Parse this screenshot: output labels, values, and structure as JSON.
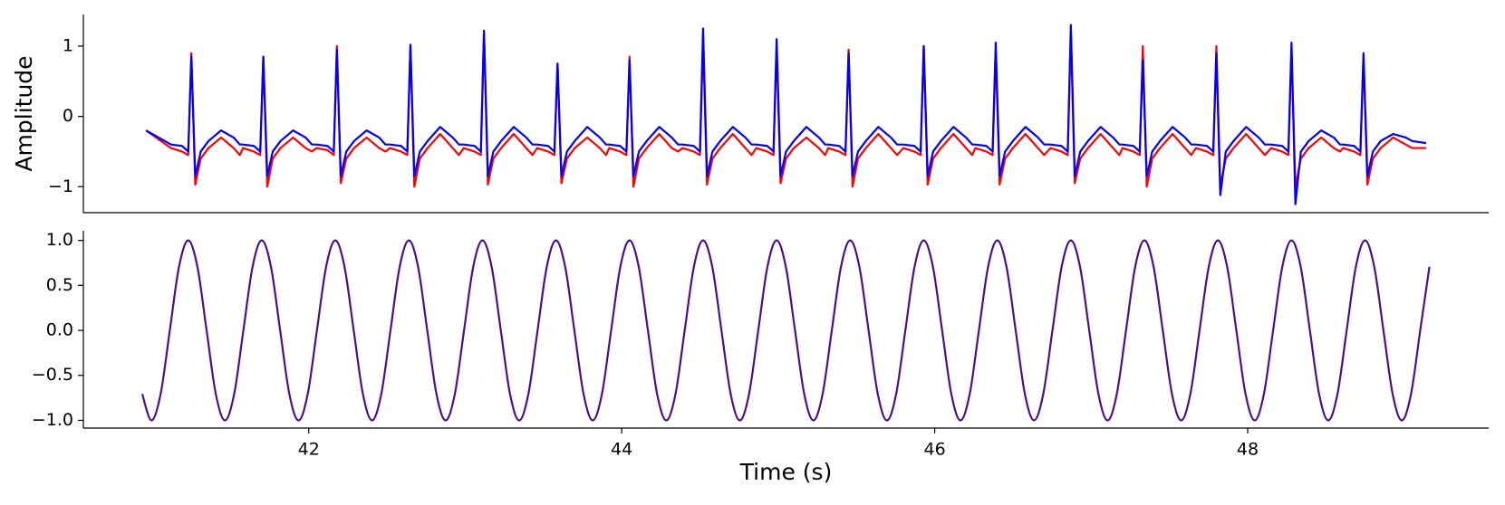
{
  "chart_data": [
    {
      "type": "line",
      "ylabel": "Amplitude",
      "xlim": [
        40.56,
        49.54
      ],
      "ylim": [
        -1.37,
        1.45
      ],
      "yticks": [
        {
          "value": -1,
          "label": "−1"
        },
        0,
        1
      ],
      "x": [
        40.96,
        41.12,
        41.19,
        41.23,
        41.25,
        41.275,
        41.31,
        41.36,
        41.44,
        41.52,
        41.56,
        41.58,
        41.65,
        41.69,
        41.71,
        41.735,
        41.77,
        41.82,
        41.9,
        41.98,
        42.02,
        42.05,
        42.12,
        42.16,
        42.18,
        42.205,
        42.24,
        42.29,
        42.37,
        42.45,
        42.49,
        42.52,
        42.59,
        42.63,
        42.65,
        42.675,
        42.71,
        42.76,
        42.84,
        42.92,
        42.96,
        42.99,
        43.06,
        43.1,
        43.12,
        43.145,
        43.18,
        43.23,
        43.31,
        43.39,
        43.43,
        43.46,
        43.53,
        43.57,
        43.59,
        43.615,
        43.65,
        43.7,
        43.78,
        43.86,
        43.9,
        43.92,
        43.99,
        44.03,
        44.05,
        44.075,
        44.11,
        44.16,
        44.24,
        44.32,
        44.36,
        44.39,
        44.46,
        44.5,
        44.52,
        44.545,
        44.58,
        44.63,
        44.71,
        44.79,
        44.83,
        44.86,
        44.93,
        44.97,
        44.99,
        45.015,
        45.05,
        45.1,
        45.18,
        45.26,
        45.3,
        45.32,
        45.39,
        45.43,
        45.45,
        45.475,
        45.51,
        45.56,
        45.64,
        45.72,
        45.76,
        45.8,
        45.87,
        45.91,
        45.93,
        45.955,
        45.99,
        46.04,
        46.12,
        46.2,
        46.24,
        46.26,
        46.33,
        46.37,
        46.39,
        46.415,
        46.45,
        46.5,
        46.58,
        46.66,
        46.7,
        46.74,
        46.81,
        46.85,
        46.87,
        46.895,
        46.93,
        46.98,
        47.06,
        47.14,
        47.18,
        47.2,
        47.27,
        47.31,
        47.33,
        47.355,
        47.39,
        47.44,
        47.52,
        47.6,
        47.64,
        47.67,
        47.74,
        47.78,
        47.8,
        47.825,
        47.86,
        47.91,
        47.99,
        48.07,
        48.11,
        48.15,
        48.22,
        48.26,
        48.28,
        48.305,
        48.34,
        48.39,
        48.47,
        48.55,
        48.59,
        48.61,
        48.68,
        48.72,
        48.74,
        48.765,
        48.8,
        48.85,
        48.93,
        49.01,
        49.05,
        49.14
      ],
      "series": [
        {
          "color": "#ff0000",
          "values": [
            -0.2,
            -0.45,
            -0.5,
            -0.55,
            0.9,
            -0.97,
            -0.6,
            -0.45,
            -0.3,
            -0.45,
            -0.55,
            -0.45,
            -0.5,
            -0.55,
            0.85,
            -1.0,
            -0.6,
            -0.45,
            -0.3,
            -0.45,
            -0.5,
            -0.45,
            -0.48,
            -0.55,
            1.0,
            -0.95,
            -0.6,
            -0.45,
            -0.3,
            -0.45,
            -0.5,
            -0.45,
            -0.5,
            -0.55,
            1.0,
            -1.0,
            -0.6,
            -0.45,
            -0.25,
            -0.45,
            -0.55,
            -0.45,
            -0.5,
            -0.55,
            1.2,
            -0.97,
            -0.6,
            -0.45,
            -0.25,
            -0.45,
            -0.55,
            -0.45,
            -0.5,
            -0.55,
            0.75,
            -0.95,
            -0.6,
            -0.45,
            -0.3,
            -0.45,
            -0.55,
            -0.45,
            -0.5,
            -0.55,
            0.85,
            -1.0,
            -0.6,
            -0.45,
            -0.25,
            -0.45,
            -0.5,
            -0.45,
            -0.5,
            -0.55,
            1.1,
            -0.97,
            -0.6,
            -0.45,
            -0.25,
            -0.45,
            -0.55,
            -0.45,
            -0.5,
            -0.55,
            1.0,
            -0.95,
            -0.6,
            -0.45,
            -0.3,
            -0.45,
            -0.55,
            -0.45,
            -0.5,
            -0.55,
            0.95,
            -1.0,
            -0.6,
            -0.45,
            -0.25,
            -0.45,
            -0.55,
            -0.45,
            -0.5,
            -0.55,
            1.0,
            -0.97,
            -0.6,
            -0.45,
            -0.25,
            -0.45,
            -0.55,
            -0.45,
            -0.5,
            -0.55,
            0.9,
            -0.97,
            -0.6,
            -0.45,
            -0.25,
            -0.45,
            -0.55,
            -0.45,
            -0.5,
            -0.55,
            1.2,
            -0.95,
            -0.6,
            -0.45,
            -0.25,
            -0.45,
            -0.55,
            -0.45,
            -0.5,
            -0.55,
            1.0,
            -1.0,
            -0.6,
            -0.45,
            -0.25,
            -0.45,
            -0.55,
            -0.45,
            -0.5,
            -0.55,
            1.0,
            -1.0,
            -0.6,
            -0.45,
            -0.25,
            -0.45,
            -0.55,
            -0.45,
            -0.5,
            -0.55,
            0.95,
            -1.0,
            -0.6,
            -0.45,
            -0.3,
            -0.45,
            -0.5,
            -0.45,
            -0.5,
            -0.55,
            0.85,
            -0.97,
            -0.6,
            -0.45,
            -0.3,
            -0.4,
            -0.45,
            -0.45
          ]
        },
        {
          "color": "#0000ff",
          "values": [
            -0.2,
            -0.4,
            -0.42,
            -0.5,
            0.85,
            -0.85,
            -0.5,
            -0.35,
            -0.2,
            -0.3,
            -0.4,
            -0.4,
            -0.42,
            -0.5,
            0.85,
            -0.85,
            -0.5,
            -0.35,
            -0.2,
            -0.3,
            -0.4,
            -0.4,
            -0.42,
            -0.5,
            0.95,
            -0.85,
            -0.5,
            -0.35,
            -0.2,
            -0.3,
            -0.4,
            -0.4,
            -0.42,
            -0.5,
            1.02,
            -0.85,
            -0.5,
            -0.35,
            -0.15,
            -0.3,
            -0.4,
            -0.4,
            -0.42,
            -0.5,
            1.22,
            -0.85,
            -0.5,
            -0.35,
            -0.15,
            -0.3,
            -0.4,
            -0.4,
            -0.42,
            -0.5,
            0.75,
            -0.85,
            -0.5,
            -0.35,
            -0.15,
            -0.3,
            -0.4,
            -0.4,
            -0.42,
            -0.5,
            0.8,
            -0.85,
            -0.5,
            -0.35,
            -0.15,
            -0.3,
            -0.4,
            -0.4,
            -0.42,
            -0.5,
            1.25,
            -0.85,
            -0.5,
            -0.35,
            -0.15,
            -0.3,
            -0.4,
            -0.4,
            -0.42,
            -0.5,
            1.1,
            -0.85,
            -0.5,
            -0.35,
            -0.15,
            -0.3,
            -0.4,
            -0.4,
            -0.42,
            -0.5,
            0.9,
            -0.85,
            -0.5,
            -0.35,
            -0.15,
            -0.3,
            -0.4,
            -0.4,
            -0.42,
            -0.5,
            1.0,
            -0.85,
            -0.5,
            -0.35,
            -0.15,
            -0.3,
            -0.4,
            -0.4,
            -0.42,
            -0.5,
            1.05,
            -0.85,
            -0.5,
            -0.35,
            -0.15,
            -0.3,
            -0.4,
            -0.4,
            -0.42,
            -0.5,
            1.3,
            -0.85,
            -0.5,
            -0.35,
            -0.15,
            -0.3,
            -0.4,
            -0.4,
            -0.42,
            -0.5,
            0.8,
            -0.85,
            -0.5,
            -0.35,
            -0.15,
            -0.3,
            -0.4,
            -0.4,
            -0.42,
            -0.5,
            0.9,
            -1.12,
            -0.5,
            -0.35,
            -0.15,
            -0.3,
            -0.4,
            -0.4,
            -0.42,
            -0.5,
            1.05,
            -1.25,
            -0.5,
            -0.35,
            -0.2,
            -0.3,
            -0.4,
            -0.4,
            -0.42,
            -0.5,
            0.9,
            -0.85,
            -0.5,
            -0.35,
            -0.25,
            -0.3,
            -0.35,
            -0.38
          ]
        }
      ]
    },
    {
      "type": "line",
      "xlabel": "Time (s)",
      "xlim": [
        40.56,
        49.54
      ],
      "ylim": [
        -1.086,
        1.107
      ],
      "xticks": [
        42,
        44,
        46,
        48
      ],
      "yticks": [
        {
          "value": -1,
          "label": "−1.0"
        },
        {
          "value": -0.5,
          "label": "−0.5"
        },
        {
          "value": 0,
          "label": "0.0"
        },
        {
          "value": 0.5,
          "label": "0.5"
        },
        {
          "value": 1,
          "label": "1.0"
        }
      ],
      "x": [
        40.93625,
        40.995,
        41.05375,
        41.1125,
        41.17125,
        41.23,
        41.28875,
        41.3475,
        41.40625,
        41.465,
        41.52375,
        41.5825,
        41.64125,
        41.7,
        41.75875,
        41.8175,
        41.87625,
        41.935,
        41.99375,
        42.0525,
        42.11125,
        42.17,
        42.22875,
        42.2875,
        42.34625,
        42.405,
        42.46375,
        42.5225,
        42.58125,
        42.64,
        42.69875,
        42.7575,
        42.81625,
        42.875,
        42.93375,
        42.9925,
        43.05125,
        43.11,
        43.16875,
        43.2275,
        43.28625,
        43.345,
        43.40375,
        43.4625,
        43.52125,
        43.58,
        43.63875,
        43.6975,
        43.75625,
        43.815,
        43.87375,
        43.9325,
        43.99125,
        44.05,
        44.10875,
        44.1675,
        44.22625,
        44.285,
        44.34375,
        44.4025,
        44.46125,
        44.52,
        44.57875,
        44.6375,
        44.69625,
        44.755,
        44.81375,
        44.8725,
        44.93125,
        44.99,
        45.04875,
        45.1075,
        45.16625,
        45.225,
        45.28375,
        45.3425,
        45.40125,
        45.46,
        45.51875,
        45.5775,
        45.63625,
        45.695,
        45.75375,
        45.8125,
        45.87125,
        45.93,
        45.98875,
        46.0475,
        46.10625,
        46.165,
        46.22375,
        46.2825,
        46.34125,
        46.4,
        46.45875,
        46.5175,
        46.57625,
        46.635,
        46.69375,
        46.7525,
        46.81125,
        46.87,
        46.92875,
        46.9875,
        47.04625,
        47.105,
        47.16375,
        47.2225,
        47.28125,
        47.34,
        47.39875,
        47.4575,
        47.51625,
        47.575,
        47.63375,
        47.6925,
        47.75125,
        47.81,
        47.86875,
        47.9275,
        47.98625,
        48.045,
        48.10375,
        48.1625,
        48.22125,
        48.28,
        48.33875,
        48.3975,
        48.45625,
        48.515,
        48.57375,
        48.6325,
        48.69125,
        48.75,
        48.80875,
        48.8675,
        48.92625,
        48.985,
        49.04375,
        49.1025,
        49.16125
      ],
      "series": [
        {
          "color": "#4b0f8c",
          "values": [
            -0.707,
            -1,
            -0.707,
            0,
            0.707,
            1,
            0.707,
            0,
            -0.707,
            -1,
            -0.707,
            0,
            0.707,
            1,
            0.707,
            0,
            -0.707,
            -1,
            -0.707,
            0,
            0.707,
            1,
            0.707,
            0,
            -0.707,
            -1,
            -0.707,
            0,
            0.707,
            1,
            0.707,
            0,
            -0.707,
            -1,
            -0.707,
            0,
            0.707,
            1,
            0.707,
            0,
            -0.707,
            -1,
            -0.707,
            0,
            0.707,
            1,
            0.707,
            0,
            -0.707,
            -1,
            -0.707,
            0,
            0.707,
            1,
            0.707,
            0,
            -0.707,
            -1,
            -0.707,
            0,
            0.707,
            1,
            0.707,
            0,
            -0.707,
            -1,
            -0.707,
            0,
            0.707,
            1,
            0.707,
            0,
            -0.707,
            -1,
            -0.707,
            0,
            0.707,
            1,
            0.707,
            0,
            -0.707,
            -1,
            -0.707,
            0,
            0.707,
            1,
            0.707,
            0,
            -0.707,
            -1,
            -0.707,
            0,
            0.707,
            1,
            0.707,
            0,
            -0.707,
            -1,
            -0.707,
            0,
            0.707,
            1,
            0.707,
            0,
            -0.707,
            -1,
            -0.707,
            0,
            0.707,
            1,
            0.707,
            0,
            -0.707,
            -1,
            -0.707,
            0,
            0.707,
            1,
            0.707,
            0,
            -0.707,
            -1,
            -0.707,
            0,
            0.707,
            1,
            0.707,
            0,
            -0.707,
            -1,
            -0.707,
            0,
            0.707,
            1,
            0.707,
            0,
            -0.707,
            -1,
            -0.707,
            0,
            0.707
          ]
        }
      ]
    }
  ]
}
